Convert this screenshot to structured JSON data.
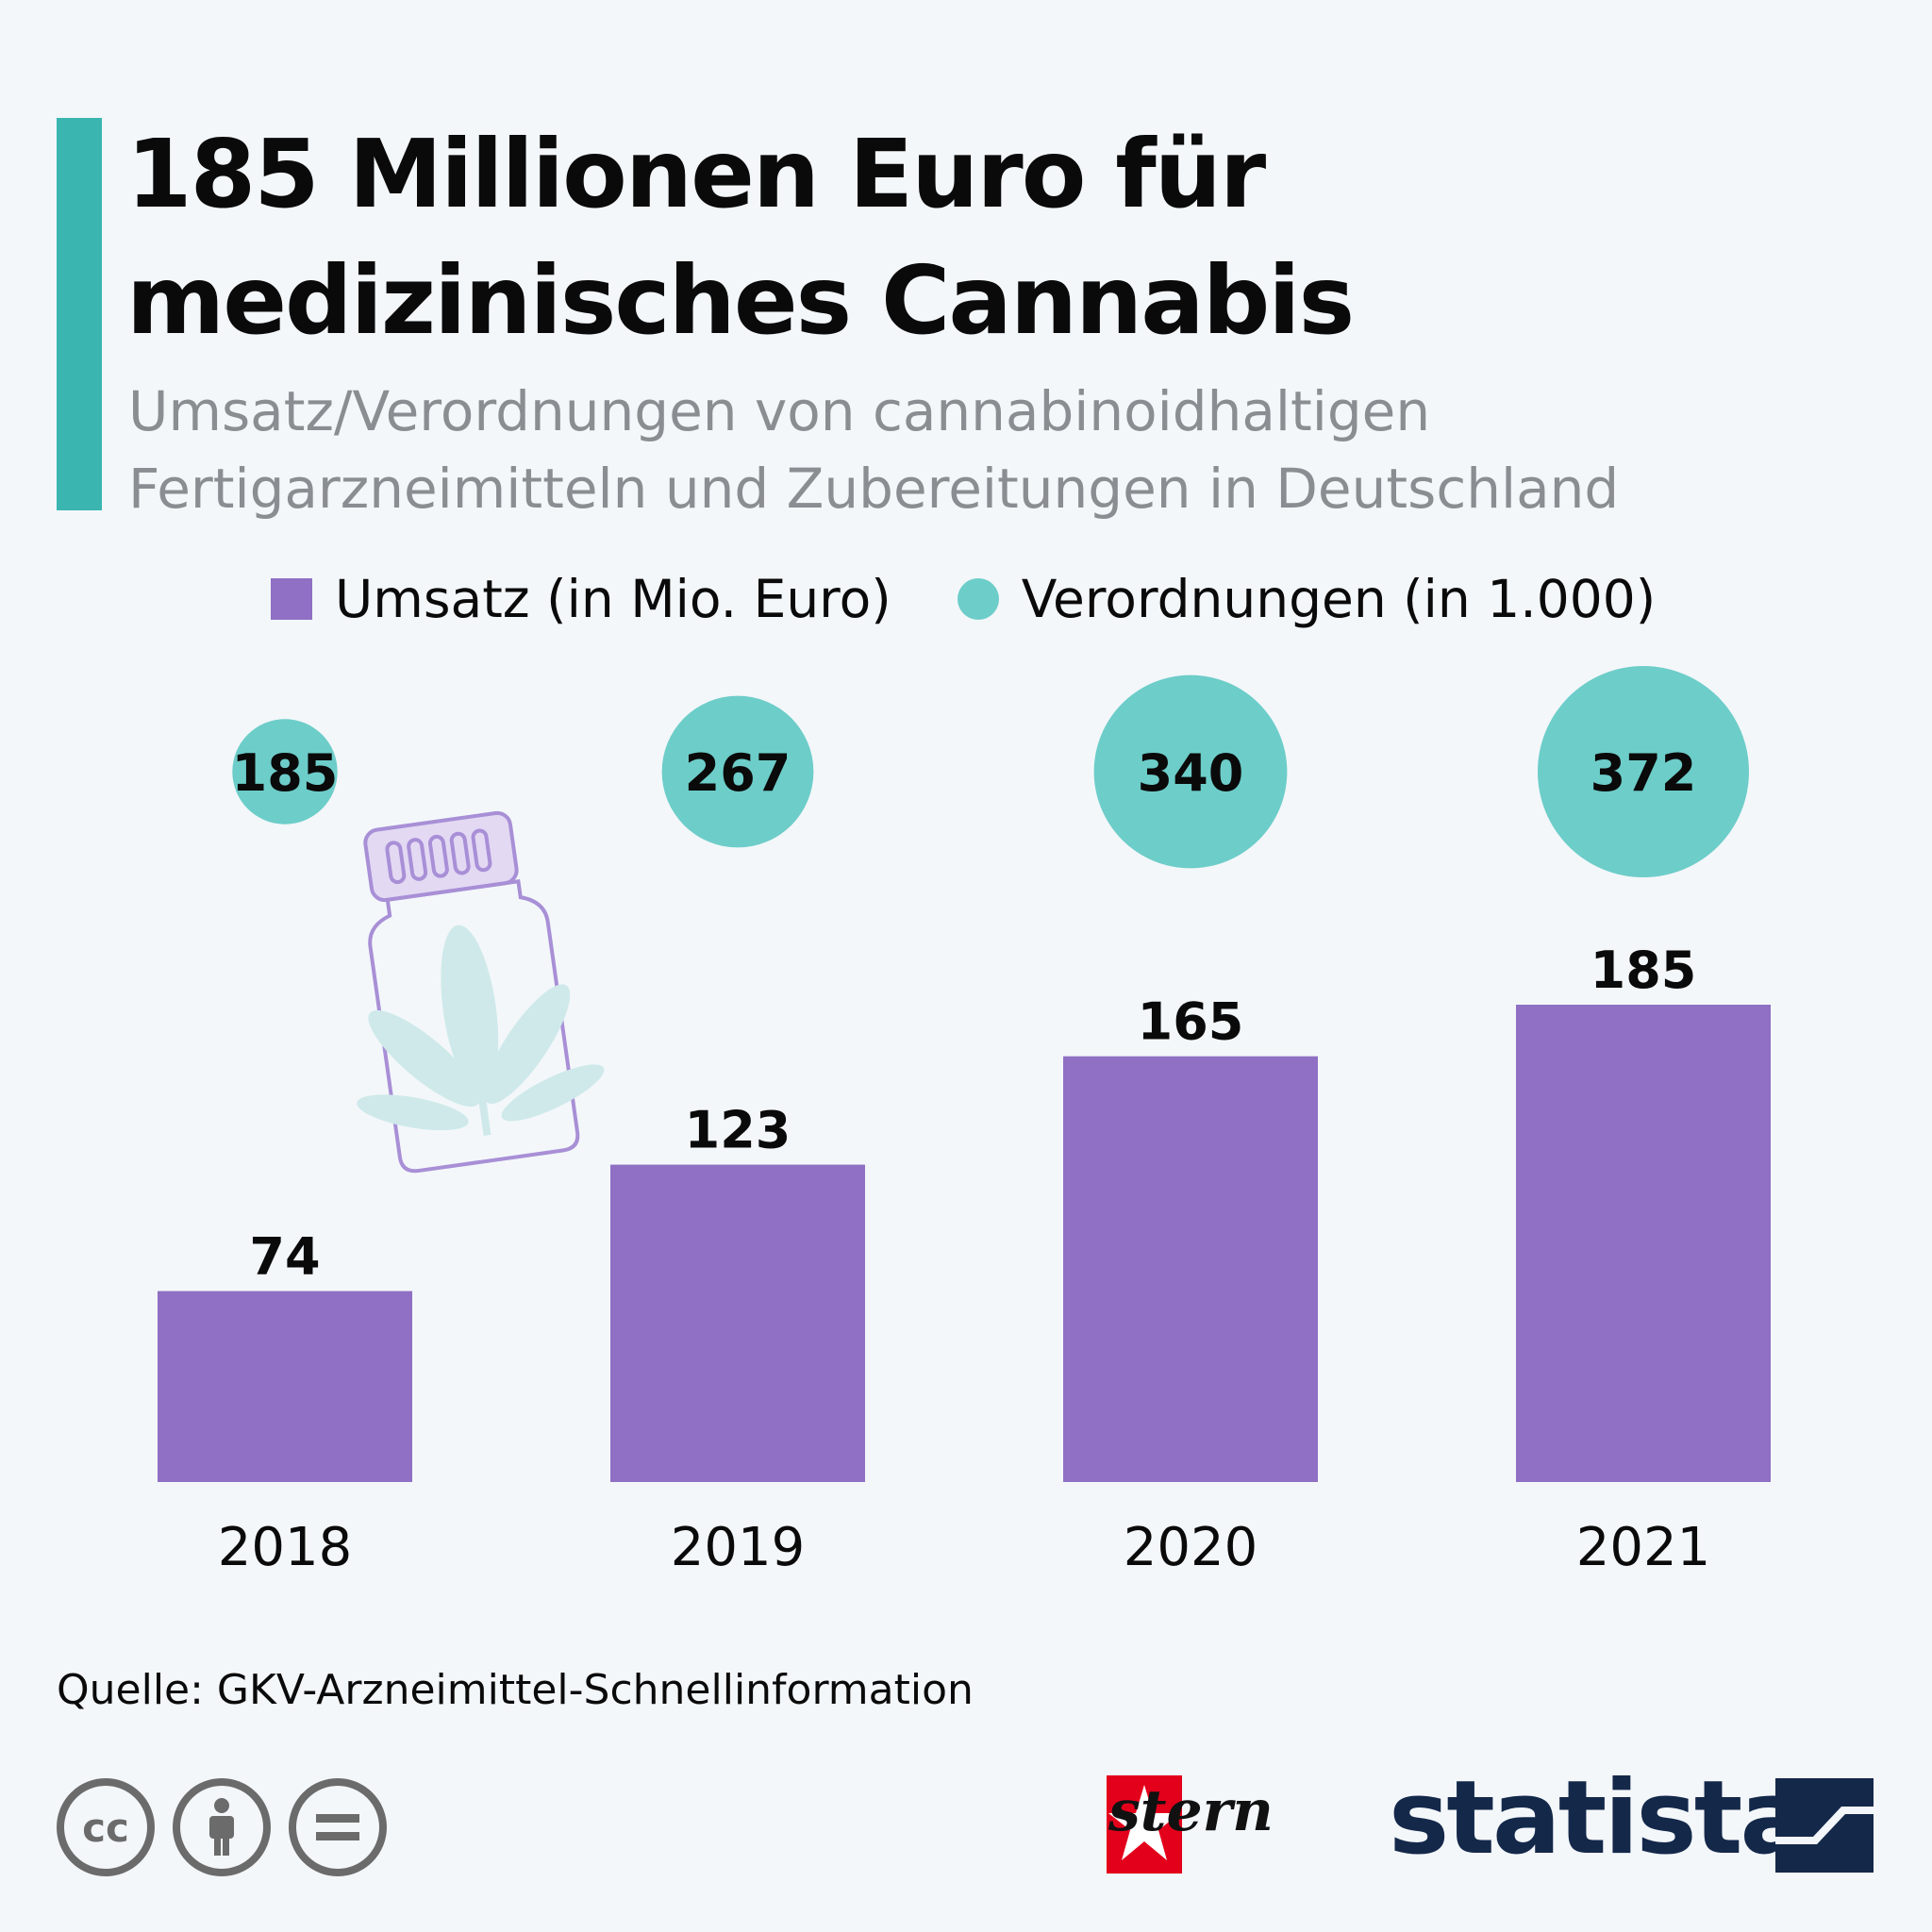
{
  "header": {
    "title": "185 Millionen Euro für medizinisches Cannabis",
    "subtitle": "Umsatz/Verordnungen von cannabinoidhaltigen Fertigarzneimitteln und Zubereitungen in Deutschland"
  },
  "legend": {
    "umsatz": "Umsatz (in Mio. Euro)",
    "verordnungen": "Verordnungen (in 1.000)"
  },
  "colors": {
    "bar": "#8f70c4",
    "bubble": "#6dcdc9",
    "accent": "#3ab5b0",
    "background": "#f3f7fa"
  },
  "chart_data": {
    "type": "bar",
    "categories": [
      "2018",
      "2019",
      "2020",
      "2021"
    ],
    "series": [
      {
        "name": "Umsatz (in Mio. Euro)",
        "type": "bar",
        "values": [
          74,
          123,
          165,
          185
        ]
      },
      {
        "name": "Verordnungen (in 1.000)",
        "type": "bubble",
        "values": [
          185,
          267,
          340,
          372
        ]
      }
    ],
    "title": "185 Millionen Euro für medizinisches Cannabis",
    "xlabel": "",
    "ylabel": "",
    "grid": false,
    "legend_position": "top"
  },
  "footer": {
    "source": "Quelle: GKV-Arzneimittel-Schnellinformation",
    "stern": "stern",
    "statista": "statista",
    "license_icons": [
      "cc-icon",
      "by-icon",
      "nd-icon"
    ]
  }
}
